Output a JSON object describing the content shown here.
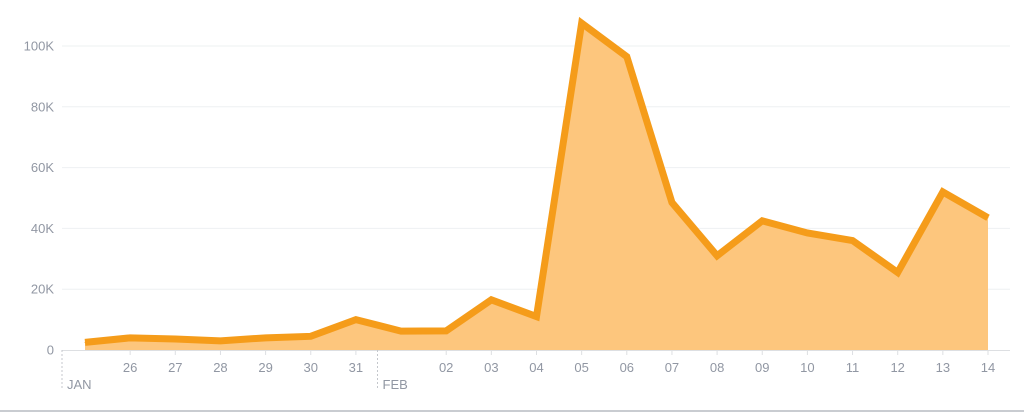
{
  "chart_data": {
    "type": "area",
    "title": "",
    "xlabel": "",
    "ylabel": "",
    "x": [
      "2017-01-25",
      "2017-01-26",
      "2017-01-27",
      "2017-01-28",
      "2017-01-29",
      "2017-01-30",
      "2017-01-31",
      "2017-02-01",
      "2017-02-02",
      "2017-02-03",
      "2017-02-04",
      "2017-02-05",
      "2017-02-06",
      "2017-02-07",
      "2017-02-08",
      "2017-02-09",
      "2017-02-10",
      "2017-02-11",
      "2017-02-12",
      "2017-02-13",
      "2017-02-14"
    ],
    "x_tick_labels": [
      "26",
      "27",
      "28",
      "29",
      "30",
      "31",
      "02",
      "03",
      "04",
      "05",
      "06",
      "07",
      "08",
      "09",
      "10",
      "11",
      "12",
      "13",
      "14"
    ],
    "month_labels": [
      "JAN",
      "FEB"
    ],
    "series": [
      {
        "values": [
          2500,
          4000,
          3600,
          3000,
          4000,
          4500,
          10000,
          6200,
          6300,
          16500,
          11000,
          107500,
          96500,
          48500,
          31000,
          42500,
          38500,
          36000,
          25500,
          52000,
          43500
        ]
      }
    ],
    "ylim": [
      0,
      110000
    ],
    "y_ticks": [
      0,
      20000,
      40000,
      60000,
      80000,
      100000
    ],
    "y_tick_labels": [
      "0",
      "20K",
      "40K",
      "60K",
      "80K",
      "100K"
    ],
    "grid": true,
    "colors": {
      "line": "#f59c1a",
      "fill": "#fdc67d",
      "grid": "#eef0f2",
      "axis_text": "#9197a3",
      "axis_line": "#dddfe2"
    }
  }
}
